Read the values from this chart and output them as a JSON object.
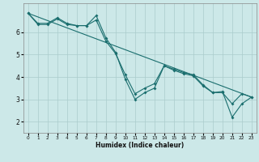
{
  "xlabel": "Humidex (Indice chaleur)",
  "ylabel": "",
  "bg_color": "#cce8e8",
  "grid_color": "#aacccc",
  "line_color": "#1a6e6e",
  "xlim": [
    -0.5,
    23.5
  ],
  "ylim": [
    1.5,
    7.3
  ],
  "xticks": [
    0,
    1,
    2,
    3,
    4,
    5,
    6,
    7,
    8,
    9,
    10,
    11,
    12,
    13,
    14,
    15,
    16,
    17,
    18,
    19,
    20,
    21,
    22,
    23
  ],
  "yticks": [
    2,
    3,
    4,
    5,
    6
  ],
  "line1_x": [
    0,
    1,
    2,
    3,
    4,
    5,
    6,
    7,
    8,
    9,
    10,
    11,
    12,
    13,
    14,
    15,
    16,
    17,
    18,
    19,
    20,
    21,
    22,
    23
  ],
  "line1_y": [
    6.85,
    6.4,
    6.4,
    6.65,
    6.4,
    6.3,
    6.3,
    6.75,
    5.75,
    5.1,
    3.9,
    3.0,
    3.3,
    3.5,
    4.5,
    4.35,
    4.2,
    4.1,
    3.65,
    3.3,
    3.35,
    2.2,
    2.8,
    3.1
  ],
  "line2_x": [
    0,
    1,
    2,
    3,
    4,
    5,
    6,
    7,
    8,
    9,
    10,
    11,
    12,
    13,
    14,
    15,
    16,
    17,
    18,
    19,
    20,
    21,
    22,
    23
  ],
  "line2_y": [
    6.85,
    6.35,
    6.35,
    6.6,
    6.35,
    6.3,
    6.3,
    6.55,
    5.6,
    5.05,
    4.1,
    3.25,
    3.5,
    3.7,
    4.5,
    4.3,
    4.15,
    4.05,
    3.6,
    3.3,
    3.3,
    2.8,
    3.25,
    3.1
  ],
  "line3_x": [
    0,
    23
  ],
  "line3_y": [
    6.85,
    3.1
  ],
  "xlabel_fontsize": 5.5,
  "xlabel_bold": true,
  "xtick_fontsize": 4.2,
  "ytick_fontsize": 5.5
}
